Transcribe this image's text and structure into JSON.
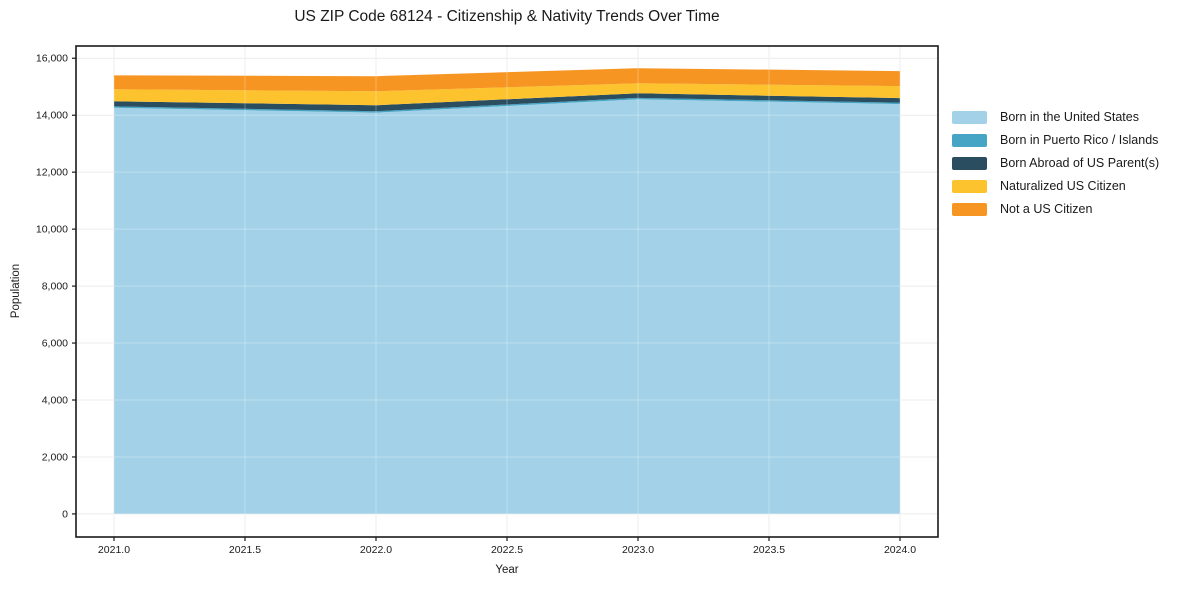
{
  "chart_data": {
    "type": "area",
    "stacked": true,
    "title": "US ZIP Code 68124 - Citizenship & Nativity Trends Over Time",
    "xlabel": "Year",
    "ylabel": "Population",
    "x": [
      2021,
      2022,
      2023,
      2024
    ],
    "series": [
      {
        "name": "Born in the United States",
        "color": "#a3d2e8",
        "values": [
          14260,
          14090,
          14560,
          14390
        ]
      },
      {
        "name": "Born in Puerto Rico / Islands",
        "color": "#46a5c5",
        "values": [
          50,
          50,
          50,
          50
        ]
      },
      {
        "name": "Born Abroad of US Parent(s)",
        "color": "#2a4d60",
        "values": [
          180,
          210,
          160,
          160
        ]
      },
      {
        "name": "Naturalized US Citizen",
        "color": "#fcc32e",
        "values": [
          420,
          490,
          350,
          420
        ]
      },
      {
        "name": "Not a US Citizen",
        "color": "#f79522",
        "values": [
          490,
          530,
          530,
          530
        ]
      }
    ],
    "stack_totals": [
      15400,
      15370,
      15650,
      15550
    ],
    "xlim": [
      2020.855,
      2024.145
    ],
    "ylim": [
      -810,
      16430
    ],
    "x_ticks": [
      2021.0,
      2021.5,
      2022.0,
      2022.5,
      2023.0,
      2023.5,
      2024.0
    ],
    "x_tick_labels": [
      "2021.0",
      "2021.5",
      "2022.0",
      "2022.5",
      "2023.0",
      "2023.5",
      "2024.0"
    ],
    "y_ticks": [
      0,
      2000,
      4000,
      6000,
      8000,
      10000,
      12000,
      14000,
      16000
    ],
    "y_tick_labels": [
      "0",
      "2,000",
      "4,000",
      "6,000",
      "8,000",
      "10,000",
      "12,000",
      "14,000",
      "16,000"
    ],
    "grid": true,
    "legend_position": "outside-right"
  },
  "colors": {
    "background": "#ffffff",
    "frame": "#1a1a1a",
    "gridline": "#e7e7e7",
    "grid_overlay": "rgba(255,255,255,0.28)",
    "text": "#1a1a1a"
  }
}
